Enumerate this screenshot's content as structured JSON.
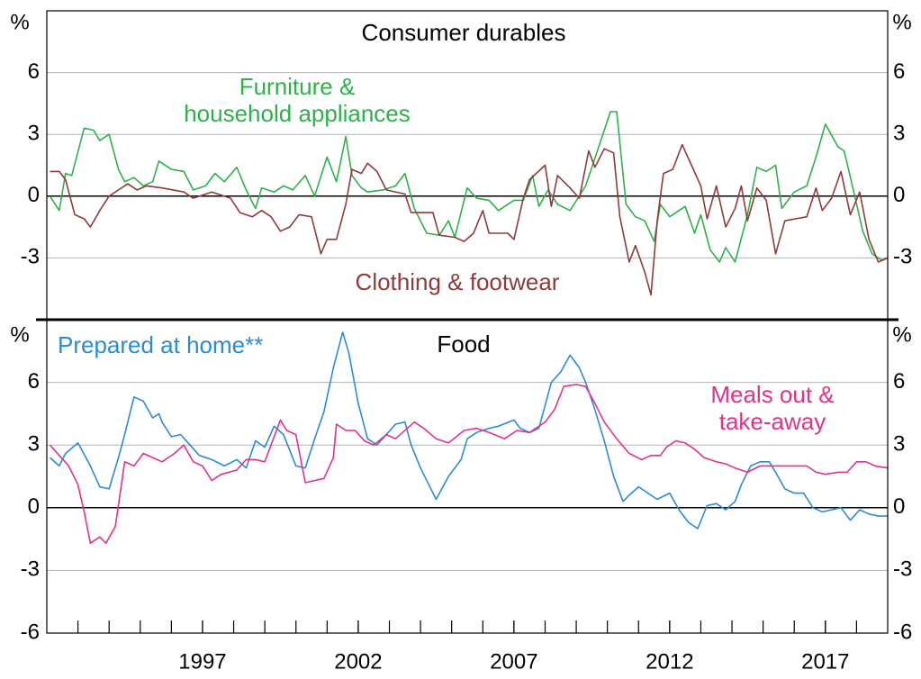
{
  "chart_data": [
    {
      "type": "line",
      "title": "Consumer durables",
      "y_unit": "%",
      "xlim": [
        1992,
        2019
      ],
      "ylim": [
        -6,
        9
      ],
      "yticks": [
        6,
        3,
        0,
        -3
      ],
      "grid": true,
      "series": [
        {
          "name": "Furniture &\nhousehold appliances",
          "color": "#2fb04c",
          "x": [
            1992.1,
            1992.4,
            1992.6,
            1992.8,
            1993.2,
            1993.5,
            1993.7,
            1994.0,
            1994.3,
            1994.5,
            1994.8,
            1995.1,
            1995.4,
            1995.6,
            1996.0,
            1996.4,
            1996.7,
            1997.1,
            1997.4,
            1997.7,
            1998.1,
            1998.4,
            1998.7,
            1998.9,
            1999.3,
            1999.6,
            1999.9,
            2000.3,
            2000.6,
            2001.0,
            2001.3,
            2001.6,
            2001.8,
            2002.1,
            2002.3,
            2002.8,
            2003.2,
            2003.5,
            2003.8,
            2004.2,
            2004.6,
            2004.9,
            2005.1,
            2005.5,
            2005.8,
            2006.2,
            2006.5,
            2007.0,
            2007.3,
            2007.6,
            2007.8,
            2008.1,
            2008.4,
            2008.8,
            2009.3,
            2009.7,
            2010.1,
            2010.3,
            2010.6,
            2010.9,
            2011.2,
            2011.5,
            2011.7,
            2012.0,
            2012.5,
            2012.8,
            2013.0,
            2013.3,
            2013.6,
            2013.8,
            2014.1,
            2014.5,
            2014.8,
            2015.1,
            2015.4,
            2015.6,
            2016.0,
            2016.4,
            2016.7,
            2017.0,
            2017.4,
            2017.6,
            2017.9,
            2018.2,
            2018.5,
            2018.8,
            2019.0
          ],
          "values": [
            0.0,
            -0.7,
            1.1,
            1.0,
            3.3,
            3.2,
            2.7,
            3.0,
            1.3,
            0.7,
            0.9,
            0.5,
            0.7,
            1.7,
            1.3,
            1.2,
            0.3,
            0.5,
            1.1,
            0.7,
            1.4,
            0.3,
            -0.6,
            0.4,
            0.2,
            0.5,
            0.3,
            1.0,
            0.0,
            1.9,
            0.7,
            2.9,
            1.0,
            0.4,
            0.2,
            0.3,
            0.5,
            1.1,
            -0.6,
            -1.8,
            -1.9,
            -1.2,
            -2.0,
            0.4,
            -0.1,
            -0.2,
            -0.7,
            -0.2,
            -0.2,
            1.0,
            -0.5,
            0.3,
            -0.4,
            -0.7,
            0.5,
            2.3,
            4.1,
            4.1,
            -0.4,
            -1.0,
            -1.2,
            -2.2,
            -0.4,
            -1.0,
            -0.5,
            -1.8,
            -0.9,
            -2.6,
            -3.2,
            -2.5,
            -3.2,
            -0.9,
            1.4,
            1.2,
            1.5,
            -0.6,
            0.2,
            0.5,
            1.9,
            3.5,
            2.4,
            2.2,
            0.3,
            -1.7,
            -2.8,
            -3.1,
            -3.0
          ]
        },
        {
          "name": "Clothing & footwear",
          "color": "#8e3b3b",
          "x": [
            1992.1,
            1992.4,
            1992.6,
            1992.9,
            1993.2,
            1993.4,
            1993.7,
            1994.0,
            1994.6,
            1994.9,
            1995.2,
            1995.7,
            1996.4,
            1996.7,
            1997.3,
            1997.9,
            1998.2,
            1998.6,
            1998.9,
            1999.2,
            1999.5,
            1999.8,
            2000.1,
            2000.5,
            2000.8,
            2001.0,
            2001.3,
            2001.6,
            2001.8,
            2002.1,
            2002.3,
            2002.6,
            2002.9,
            2003.5,
            2003.7,
            2004.4,
            2004.6,
            2005.1,
            2005.4,
            2005.7,
            2006.0,
            2006.2,
            2006.8,
            2007.0,
            2007.3,
            2007.5,
            2008.0,
            2008.2,
            2008.4,
            2008.8,
            2009.1,
            2009.4,
            2009.6,
            2009.9,
            2010.2,
            2010.4,
            2010.7,
            2010.9,
            2011.2,
            2011.4,
            2011.6,
            2011.8,
            2012.1,
            2012.4,
            2012.7,
            2013.0,
            2013.2,
            2013.5,
            2013.8,
            2014.1,
            2014.3,
            2014.5,
            2014.8,
            2015.1,
            2015.4,
            2015.7,
            2016.4,
            2016.7,
            2016.9,
            2017.2,
            2017.5,
            2017.8,
            2018.1,
            2018.4,
            2018.7,
            2019.0
          ],
          "values": [
            1.2,
            1.2,
            0.8,
            -0.9,
            -1.1,
            -1.5,
            -0.7,
            0.0,
            0.6,
            0.3,
            0.5,
            0.4,
            0.2,
            -0.1,
            0.2,
            -0.1,
            -0.8,
            -1.0,
            -0.7,
            -1.0,
            -1.7,
            -1.5,
            -0.9,
            -1.0,
            -2.8,
            -2.1,
            -2.1,
            -0.4,
            1.3,
            1.1,
            1.6,
            1.2,
            0.3,
            0.1,
            -0.8,
            -0.8,
            -1.9,
            -2.0,
            -2.2,
            -1.8,
            -0.7,
            -1.8,
            -1.8,
            -2.1,
            -0.1,
            0.8,
            1.5,
            -0.5,
            1.0,
            0.4,
            -0.1,
            2.2,
            1.4,
            2.3,
            2.1,
            -1.0,
            -3.2,
            -2.4,
            -3.7,
            -4.8,
            -1.2,
            1.1,
            1.3,
            2.5,
            1.5,
            0.5,
            -1.1,
            0.5,
            -1.5,
            -0.6,
            0.5,
            -1.2,
            0.4,
            -0.2,
            -2.8,
            -1.2,
            -1.0,
            0.4,
            -0.7,
            -0.1,
            1.2,
            -0.9,
            0.2,
            -2.1,
            -3.2,
            -3.0
          ]
        }
      ]
    },
    {
      "type": "line",
      "title": "Food",
      "y_unit": "%",
      "xlim": [
        1992,
        2019
      ],
      "ylim": [
        -6,
        9
      ],
      "yticks": [
        6,
        3,
        0,
        -3,
        -6
      ],
      "grid": true,
      "xticks": [
        1997,
        2002,
        2007,
        2012,
        2017
      ],
      "series": [
        {
          "name": "Prepared at home**",
          "color": "#2b8bd6",
          "x": [
            1992.1,
            1992.4,
            1992.6,
            1993.0,
            1993.4,
            1993.7,
            1994.0,
            1994.3,
            1994.5,
            1994.8,
            1995.1,
            1995.4,
            1995.6,
            1995.7,
            1996.0,
            1996.3,
            1996.6,
            1996.9,
            1997.3,
            1997.7,
            1998.1,
            1998.4,
            1998.7,
            1999.0,
            1999.3,
            1999.6,
            2000.0,
            2000.3,
            2000.6,
            2000.9,
            2001.2,
            2001.5,
            2001.7,
            2002.0,
            2002.3,
            2002.6,
            2002.9,
            2003.2,
            2003.5,
            2003.7,
            2004.0,
            2004.5,
            2004.9,
            2005.3,
            2005.5,
            2005.8,
            2006.2,
            2006.5,
            2007.0,
            2007.2,
            2007.5,
            2007.8,
            2008.2,
            2008.5,
            2008.8,
            2009.1,
            2009.3,
            2009.6,
            2009.9,
            2010.2,
            2010.5,
            2010.7,
            2011.0,
            2011.3,
            2011.6,
            2012.0,
            2012.3,
            2012.6,
            2012.9,
            2013.2,
            2013.5,
            2013.8,
            2014.1,
            2014.3,
            2014.6,
            2014.9,
            2015.2,
            2015.4,
            2015.7,
            2016.0,
            2016.3,
            2016.6,
            2016.9,
            2017.2,
            2017.5,
            2017.8,
            2018.1,
            2018.4,
            2018.7,
            2019.0
          ],
          "values": [
            2.4,
            2.0,
            2.6,
            3.1,
            2.0,
            1.0,
            0.9,
            2.4,
            3.5,
            5.3,
            5.1,
            4.3,
            4.5,
            4.1,
            3.4,
            3.5,
            3.0,
            2.5,
            2.3,
            2.0,
            2.3,
            1.9,
            3.2,
            2.9,
            3.9,
            3.5,
            2.0,
            1.9,
            3.3,
            4.6,
            6.7,
            8.4,
            7.4,
            5.0,
            3.3,
            3.0,
            3.5,
            4.0,
            4.1,
            3.0,
            1.9,
            0.4,
            1.5,
            2.3,
            3.3,
            3.6,
            3.8,
            3.9,
            4.2,
            3.8,
            3.6,
            3.8,
            6.0,
            6.5,
            7.3,
            6.7,
            6.0,
            4.7,
            3.2,
            1.5,
            0.3,
            0.6,
            1.0,
            0.7,
            0.4,
            0.7,
            -0.1,
            -0.7,
            -1.0,
            0.1,
            0.2,
            -0.1,
            0.3,
            1.1,
            2.0,
            2.2,
            2.2,
            1.7,
            0.9,
            0.7,
            0.7,
            0.0,
            -0.2,
            -0.1,
            0.0,
            -0.6,
            -0.1,
            -0.3,
            -0.4,
            -0.4
          ]
        },
        {
          "name": "Meals out &\ntake-away",
          "color": "#e0338a",
          "x": [
            1992.1,
            1992.4,
            1992.7,
            1993.0,
            1993.2,
            1993.4,
            1993.7,
            1993.9,
            1994.2,
            1994.5,
            1994.8,
            1995.1,
            1995.4,
            1995.7,
            1996.1,
            1996.4,
            1996.7,
            1997.0,
            1997.3,
            1997.6,
            1998.1,
            1998.4,
            1998.7,
            1999.0,
            1999.5,
            1999.7,
            2000.0,
            2000.3,
            2000.6,
            2000.9,
            2001.2,
            2001.3,
            2001.6,
            2001.9,
            2002.2,
            2002.5,
            2002.9,
            2003.2,
            2003.8,
            2004.1,
            2004.5,
            2004.9,
            2005.4,
            2005.8,
            2006.2,
            2006.7,
            2007.1,
            2007.5,
            2008.0,
            2008.3,
            2008.6,
            2009.0,
            2009.3,
            2009.6,
            2009.9,
            2010.3,
            2010.7,
            2011.1,
            2011.4,
            2011.7,
            2011.9,
            2012.2,
            2012.5,
            2012.8,
            2013.1,
            2013.5,
            2013.8,
            2014.1,
            2014.5,
            2014.9,
            2015.2,
            2015.5,
            2015.8,
            2016.1,
            2016.4,
            2016.7,
            2017.0,
            2017.4,
            2017.7,
            2018.0,
            2018.3,
            2018.6,
            2019.0
          ],
          "values": [
            3.0,
            2.5,
            2.0,
            1.1,
            -0.2,
            -1.7,
            -1.4,
            -1.7,
            -0.9,
            2.2,
            2.0,
            2.6,
            2.4,
            2.2,
            2.6,
            3.0,
            2.2,
            2.0,
            1.3,
            1.6,
            1.8,
            2.3,
            2.3,
            2.2,
            4.2,
            3.7,
            3.5,
            1.2,
            1.3,
            1.4,
            2.4,
            4.0,
            3.7,
            3.7,
            3.2,
            3.0,
            3.5,
            3.3,
            4.1,
            3.8,
            3.3,
            3.1,
            3.7,
            3.8,
            3.6,
            3.3,
            3.7,
            3.6,
            4.1,
            4.7,
            5.8,
            5.9,
            5.8,
            5.0,
            4.1,
            3.3,
            2.6,
            2.3,
            2.5,
            2.5,
            2.9,
            3.2,
            3.1,
            2.8,
            2.4,
            2.2,
            2.1,
            1.9,
            1.7,
            2.0,
            2.0,
            2.0,
            2.0,
            2.0,
            2.0,
            1.7,
            1.6,
            1.7,
            1.7,
            2.2,
            2.2,
            2.0,
            1.9
          ]
        }
      ]
    }
  ]
}
